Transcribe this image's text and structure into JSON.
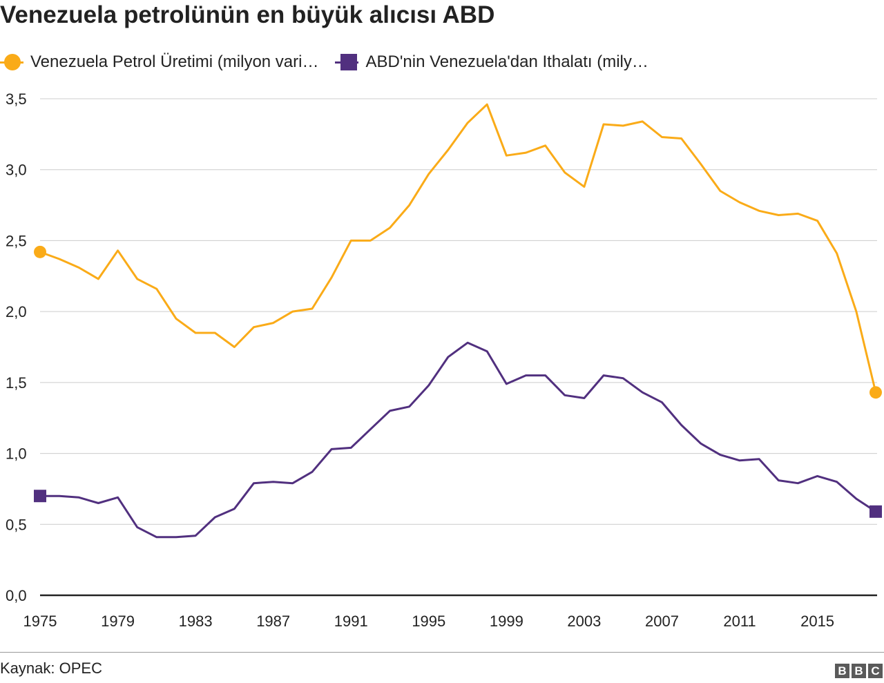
{
  "chart_data": {
    "type": "line",
    "title": "Venezuela petrolünün en büyük alıcısı ABD",
    "xlabel": "",
    "ylabel": "",
    "ylim": [
      0,
      3.5
    ],
    "xlim": [
      1975,
      2018
    ],
    "yticks": [
      "0,0",
      "0,5",
      "1,0",
      "1,5",
      "2,0",
      "2,5",
      "3,0",
      "3,5"
    ],
    "ytick_values": [
      0,
      0.5,
      1,
      1.5,
      2,
      2.5,
      3,
      3.5
    ],
    "xticks": [
      "1975",
      "1979",
      "1983",
      "1987",
      "1991",
      "1995",
      "1999",
      "2003",
      "2007",
      "2011",
      "2015"
    ],
    "grid": true,
    "legend_placement": "top-left",
    "x": [
      1975,
      1976,
      1977,
      1978,
      1979,
      1980,
      1981,
      1982,
      1983,
      1984,
      1985,
      1986,
      1987,
      1988,
      1989,
      1990,
      1991,
      1992,
      1993,
      1994,
      1995,
      1996,
      1997,
      1998,
      1999,
      2000,
      2001,
      2002,
      2003,
      2004,
      2005,
      2006,
      2007,
      2008,
      2009,
      2010,
      2011,
      2012,
      2013,
      2014,
      2015,
      2016,
      2017,
      2018
    ],
    "series": [
      {
        "name": "Venezuela Petrol Üretimi (milyon vari…",
        "color": "#faab18",
        "marker": "circle",
        "values": [
          2.42,
          2.37,
          2.31,
          2.23,
          2.43,
          2.23,
          2.16,
          1.95,
          1.85,
          1.85,
          1.75,
          1.89,
          1.92,
          2.0,
          2.02,
          2.24,
          2.5,
          2.5,
          2.59,
          2.75,
          2.97,
          3.14,
          3.33,
          3.46,
          3.1,
          3.12,
          3.17,
          2.98,
          2.88,
          3.32,
          3.31,
          3.34,
          3.23,
          3.22,
          3.04,
          2.85,
          2.77,
          2.71,
          2.68,
          2.69,
          2.64,
          2.41,
          2.0,
          1.43
        ]
      },
      {
        "name": "ABD'nin Venezuela'dan Ithalatı (mily…",
        "color": "#51307f",
        "marker": "square",
        "values": [
          0.7,
          0.7,
          0.69,
          0.65,
          0.69,
          0.48,
          0.41,
          0.41,
          0.42,
          0.55,
          0.61,
          0.79,
          0.8,
          0.79,
          0.87,
          1.03,
          1.04,
          1.17,
          1.3,
          1.33,
          1.48,
          1.68,
          1.78,
          1.72,
          1.49,
          1.55,
          1.55,
          1.41,
          1.39,
          1.55,
          1.53,
          1.43,
          1.36,
          1.2,
          1.07,
          0.99,
          0.95,
          0.96,
          0.81,
          0.79,
          0.84,
          0.8,
          0.68,
          0.59
        ]
      }
    ]
  },
  "footer": {
    "source": "Kaynak: OPEC",
    "logo": "BBC"
  }
}
